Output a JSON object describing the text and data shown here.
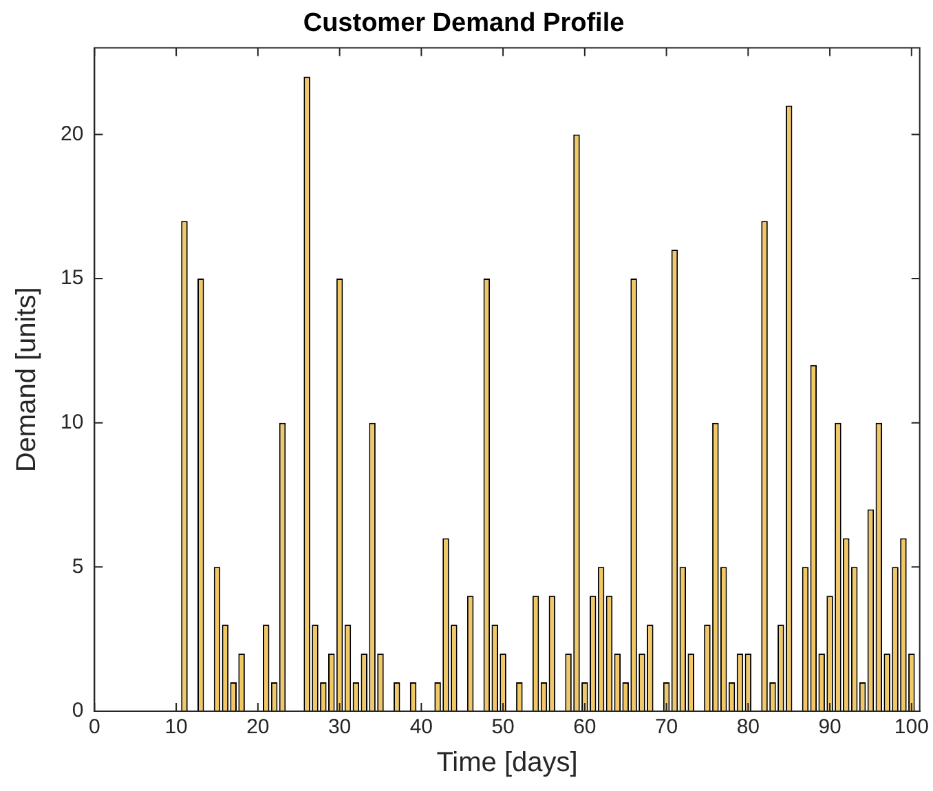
{
  "chart_data": {
    "type": "bar",
    "title": "Customer Demand Profile",
    "xlabel": "Time [days]",
    "ylabel": "Demand [units]",
    "x": [
      11,
      13,
      15,
      16,
      17,
      18,
      21,
      22,
      23,
      26,
      27,
      28,
      29,
      30,
      31,
      32,
      33,
      34,
      35,
      37,
      39,
      42,
      43,
      44,
      46,
      48,
      49,
      50,
      52,
      54,
      55,
      56,
      58,
      59,
      60,
      61,
      62,
      63,
      64,
      65,
      66,
      67,
      68,
      70,
      71,
      72,
      73,
      75,
      76,
      77,
      78,
      79,
      80,
      82,
      83,
      84,
      85,
      87,
      88,
      89,
      90,
      91,
      92,
      93,
      94,
      95,
      96,
      97,
      98,
      99,
      100
    ],
    "values": [
      17,
      15,
      5,
      3,
      1,
      2,
      3,
      1,
      10,
      22,
      3,
      1,
      2,
      15,
      3,
      1,
      2,
      10,
      2,
      1,
      1,
      1,
      6,
      3,
      4,
      15,
      3,
      2,
      1,
      4,
      1,
      4,
      2,
      20,
      1,
      4,
      5,
      4,
      2,
      1,
      15,
      2,
      3,
      1,
      16,
      5,
      2,
      3,
      10,
      5,
      1,
      2,
      2,
      17,
      1,
      3,
      21,
      5,
      12,
      2,
      4,
      10,
      6,
      5,
      1,
      7,
      10,
      2,
      5,
      6,
      2
    ],
    "color": "#f2c865",
    "xlim": [
      0,
      101
    ],
    "xticks": [
      0,
      10,
      20,
      30,
      40,
      50,
      60,
      70,
      80,
      90,
      100
    ],
    "ylim": [
      0,
      23
    ],
    "yticks": [
      0,
      5,
      10,
      15,
      20
    ],
    "grid": false,
    "legend": false
  }
}
